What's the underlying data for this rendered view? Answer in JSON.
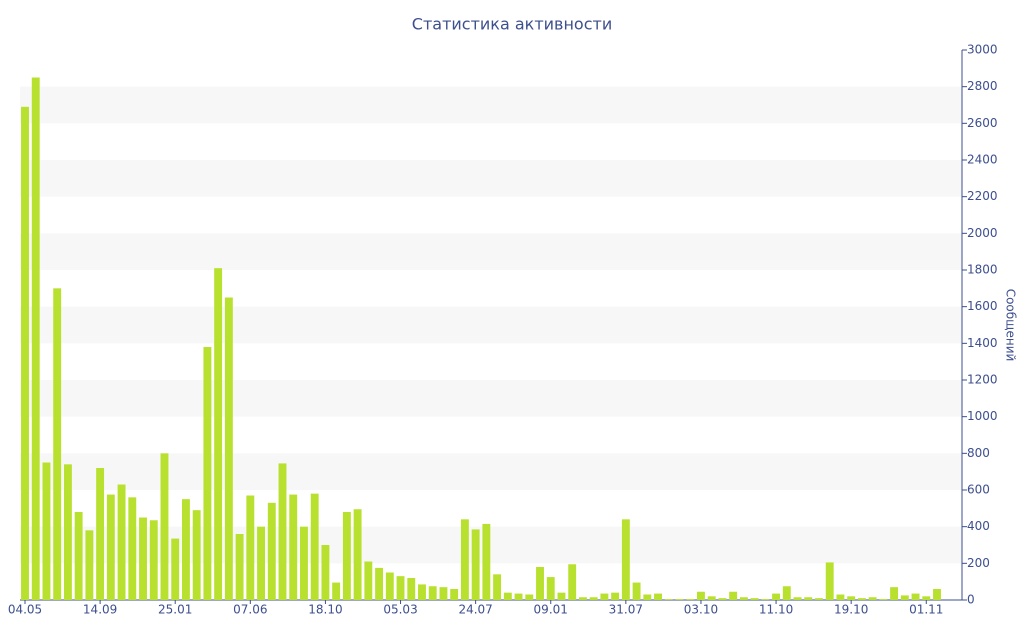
{
  "chart_data": {
    "type": "bar",
    "title": "Статистика активности",
    "y_label": "Сообщений",
    "categories": [
      "04.05",
      null,
      null,
      null,
      null,
      null,
      null,
      "14.09",
      null,
      null,
      null,
      null,
      null,
      null,
      "25.01",
      null,
      null,
      null,
      null,
      null,
      null,
      "07.06",
      null,
      null,
      null,
      null,
      null,
      null,
      "18.10",
      null,
      null,
      null,
      null,
      null,
      null,
      "05.03",
      null,
      null,
      null,
      null,
      null,
      null,
      "24.07",
      null,
      null,
      null,
      null,
      null,
      null,
      "09.01",
      null,
      null,
      null,
      null,
      null,
      null,
      "31.07",
      null,
      null,
      null,
      null,
      null,
      null,
      "03.10",
      null,
      null,
      null,
      null,
      null,
      null,
      "11.10",
      null,
      null,
      null,
      null,
      null,
      null,
      "19.10",
      null,
      null,
      null,
      null,
      null,
      null,
      "01.11",
      null
    ],
    "values": [
      2690,
      2850,
      750,
      1700,
      740,
      480,
      380,
      720,
      575,
      630,
      560,
      450,
      435,
      800,
      335,
      550,
      490,
      1380,
      1810,
      1650,
      360,
      570,
      400,
      530,
      745,
      575,
      400,
      580,
      300,
      95,
      480,
      495,
      210,
      175,
      150,
      130,
      120,
      85,
      75,
      70,
      60,
      440,
      385,
      415,
      140,
      40,
      35,
      30,
      180,
      125,
      40,
      195,
      15,
      15,
      35,
      40,
      440,
      95,
      30,
      35,
      5,
      5,
      5,
      45,
      20,
      10,
      45,
      15,
      10,
      5,
      35,
      75,
      15,
      15,
      10,
      205,
      30,
      20,
      10,
      15,
      5,
      70,
      25,
      35,
      20,
      60
    ],
    "color": "#b8e02e",
    "ylim": [
      0,
      3000
    ],
    "yticks": [
      0,
      200,
      400,
      600,
      800,
      1000,
      1200,
      1400,
      1600,
      1800,
      2000,
      2200,
      2400,
      2600,
      2800,
      3000
    ],
    "grid": true,
    "y_axis_side": "right"
  }
}
